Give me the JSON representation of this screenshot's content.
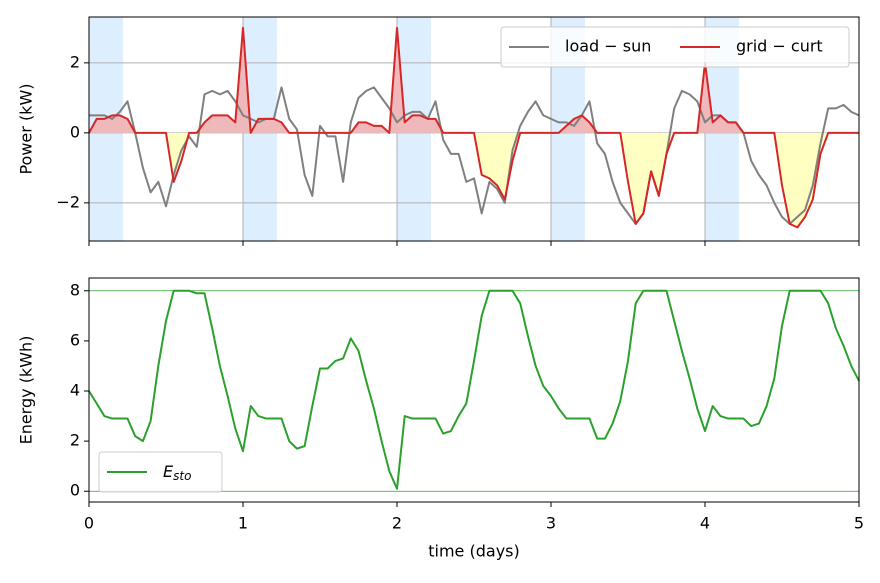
{
  "chart_data": [
    {
      "type": "line",
      "ylabel": "Power (kW)",
      "xlim": [
        0,
        5
      ],
      "xticks": [
        0,
        1,
        2,
        3,
        4,
        5
      ],
      "ylim": [
        -3.09,
        3.31
      ],
      "yticks": [
        -2,
        0,
        2
      ],
      "grid": true,
      "legend": "upper right",
      "legend_columns": 2,
      "shaded_spans": [
        [
          0,
          0.22
        ],
        [
          1,
          1.22
        ],
        [
          2,
          2.22
        ],
        [
          3,
          3.22
        ],
        [
          4,
          4.22
        ]
      ],
      "span_color": "#ddeeff",
      "fill_series": 1,
      "fill_colors": {
        "above": "#efb8ba",
        "below": "#ffffc2"
      },
      "x": [
        0,
        0.05,
        0.1,
        0.15,
        0.2,
        0.25,
        0.3,
        0.35,
        0.4,
        0.45,
        0.5,
        0.55,
        0.6,
        0.65,
        0.7,
        0.75,
        0.8,
        0.85,
        0.9,
        0.95,
        1,
        1.05,
        1.1,
        1.15,
        1.2,
        1.25,
        1.3,
        1.35,
        1.4,
        1.45,
        1.5,
        1.55,
        1.6,
        1.65,
        1.7,
        1.75,
        1.8,
        1.85,
        1.9,
        1.95,
        2,
        2.05,
        2.1,
        2.15,
        2.2,
        2.25,
        2.3,
        2.35,
        2.4,
        2.45,
        2.5,
        2.55,
        2.6,
        2.65,
        2.7,
        2.75,
        2.8,
        2.85,
        2.9,
        2.95,
        3,
        3.05,
        3.1,
        3.15,
        3.2,
        3.25,
        3.3,
        3.35,
        3.4,
        3.45,
        3.5,
        3.55,
        3.6,
        3.65,
        3.7,
        3.75,
        3.8,
        3.85,
        3.9,
        3.95,
        4,
        4.05,
        4.1,
        4.15,
        4.2,
        4.25,
        4.3,
        4.35,
        4.4,
        4.45,
        4.5,
        4.55,
        4.6,
        4.65,
        4.7,
        4.75,
        4.8,
        4.85,
        4.9,
        4.95,
        5
      ],
      "series": [
        {
          "name": "load − sun",
          "color": "#808080",
          "values": [
            0.5,
            0.5,
            0.5,
            0.4,
            0.6,
            0.9,
            0.0,
            -1.0,
            -1.7,
            -1.4,
            -2.1,
            -1.2,
            -0.5,
            -0.1,
            -0.4,
            1.1,
            1.2,
            1.1,
            1.2,
            0.9,
            0.5,
            0.4,
            0.3,
            0.4,
            0.4,
            1.3,
            0.4,
            0.1,
            -1.2,
            -1.8,
            0.2,
            -0.1,
            -0.1,
            -1.4,
            0.3,
            1.0,
            1.2,
            1.3,
            1.0,
            0.7,
            0.3,
            0.5,
            0.6,
            0.6,
            0.4,
            0.9,
            -0.2,
            -0.6,
            -0.6,
            -1.4,
            -1.3,
            -2.3,
            -1.4,
            -1.6,
            -2.0,
            -0.5,
            0.2,
            0.6,
            0.9,
            0.5,
            0.4,
            0.3,
            0.3,
            0.2,
            0.5,
            0.9,
            -0.3,
            -0.6,
            -1.4,
            -2.0,
            -2.3,
            -2.6,
            -2.3,
            -1.1,
            -1.8,
            -0.6,
            0.7,
            1.2,
            1.1,
            0.9,
            0.3,
            0.5,
            0.5,
            0.3,
            0.3,
            0.0,
            -0.8,
            -1.2,
            -1.5,
            -2.0,
            -2.4,
            -2.6,
            -2.4,
            -2.2,
            -1.5,
            -0.3,
            0.7,
            0.7,
            0.8,
            0.6,
            0.5
          ]
        },
        {
          "name": "grid − curt",
          "color": "#d62728",
          "values": [
            0,
            0.4,
            0.4,
            0.5,
            0.5,
            0.4,
            0,
            0,
            0,
            0,
            0,
            -1.4,
            -0.8,
            0,
            0,
            0.3,
            0.5,
            0.5,
            0.5,
            0.3,
            3.0,
            0,
            0.4,
            0.4,
            0.4,
            0.3,
            0,
            0,
            0,
            0,
            0,
            0,
            0,
            0,
            0,
            0.3,
            0.3,
            0.2,
            0.2,
            0,
            3.0,
            0.3,
            0.5,
            0.5,
            0.4,
            0.4,
            0,
            0,
            0,
            0,
            0,
            -1.2,
            -1.3,
            -1.5,
            -1.9,
            -0.8,
            0,
            0,
            0,
            0,
            0,
            0,
            0.2,
            0.4,
            0.5,
            0.3,
            0,
            0,
            0,
            0,
            -1.4,
            -2.6,
            -2.3,
            -1.1,
            -1.8,
            -0.6,
            0,
            0,
            0,
            0,
            2.0,
            0.3,
            0.5,
            0.3,
            0.3,
            0,
            0,
            0,
            0,
            0,
            -1.5,
            -2.6,
            -2.7,
            -2.4,
            -1.9,
            -0.6,
            0,
            0,
            0,
            0,
            0
          ]
        }
      ]
    },
    {
      "type": "line",
      "xlabel": "time (days)",
      "ylabel": "Energy (kWh)",
      "xlim": [
        0,
        5
      ],
      "xticks": [
        0,
        1,
        2,
        3,
        4,
        5
      ],
      "ylim": [
        -0.43,
        8.51
      ],
      "yticks": [
        0,
        2,
        4,
        6,
        8
      ],
      "grid": false,
      "legend": "lower left",
      "legend_columns": 1,
      "hlines": [
        0,
        8
      ],
      "hline_color": "#2ca02c",
      "x": [
        0,
        0.05,
        0.1,
        0.15,
        0.2,
        0.25,
        0.3,
        0.35,
        0.4,
        0.45,
        0.5,
        0.55,
        0.6,
        0.65,
        0.7,
        0.75,
        0.8,
        0.85,
        0.9,
        0.95,
        1,
        1.05,
        1.1,
        1.15,
        1.2,
        1.25,
        1.3,
        1.35,
        1.4,
        1.45,
        1.5,
        1.55,
        1.6,
        1.65,
        1.7,
        1.75,
        1.8,
        1.85,
        1.9,
        1.95,
        2,
        2.05,
        2.1,
        2.15,
        2.2,
        2.25,
        2.3,
        2.35,
        2.4,
        2.45,
        2.5,
        2.55,
        2.6,
        2.65,
        2.7,
        2.75,
        2.8,
        2.85,
        2.9,
        2.95,
        3,
        3.05,
        3.1,
        3.15,
        3.2,
        3.25,
        3.3,
        3.35,
        3.4,
        3.45,
        3.5,
        3.55,
        3.6,
        3.65,
        3.7,
        3.75,
        3.8,
        3.85,
        3.9,
        3.95,
        4,
        4.05,
        4.1,
        4.15,
        4.2,
        4.25,
        4.3,
        4.35,
        4.4,
        4.45,
        4.5,
        4.55,
        4.6,
        4.65,
        4.7,
        4.75,
        4.8,
        4.85,
        4.9,
        4.95,
        5
      ],
      "series": [
        {
          "name": "E_sto",
          "color": "#2ca02c",
          "values": [
            4.0,
            3.5,
            3.0,
            2.9,
            2.9,
            2.9,
            2.2,
            2.0,
            2.8,
            5.0,
            6.8,
            8.0,
            8.0,
            8.0,
            7.9,
            7.9,
            6.5,
            5.0,
            3.8,
            2.5,
            1.6,
            3.4,
            3.0,
            2.9,
            2.9,
            2.9,
            2.0,
            1.7,
            1.8,
            3.4,
            4.9,
            4.9,
            5.2,
            5.3,
            6.1,
            5.6,
            4.4,
            3.3,
            2.0,
            0.8,
            0.1,
            3.0,
            2.9,
            2.9,
            2.9,
            2.9,
            2.3,
            2.4,
            3.0,
            3.5,
            5.2,
            7.0,
            8.0,
            8.0,
            8.0,
            8.0,
            7.5,
            6.2,
            5.0,
            4.2,
            3.8,
            3.3,
            2.9,
            2.9,
            2.9,
            2.9,
            2.1,
            2.1,
            2.7,
            3.6,
            5.2,
            7.5,
            8.0,
            8.0,
            8.0,
            8.0,
            6.8,
            5.6,
            4.5,
            3.3,
            2.4,
            3.4,
            3.0,
            2.9,
            2.9,
            2.9,
            2.6,
            2.7,
            3.4,
            4.5,
            6.6,
            8.0,
            8.0,
            8.0,
            8.0,
            8.0,
            7.5,
            6.5,
            5.8,
            5.0,
            4.4
          ]
        }
      ]
    }
  ]
}
